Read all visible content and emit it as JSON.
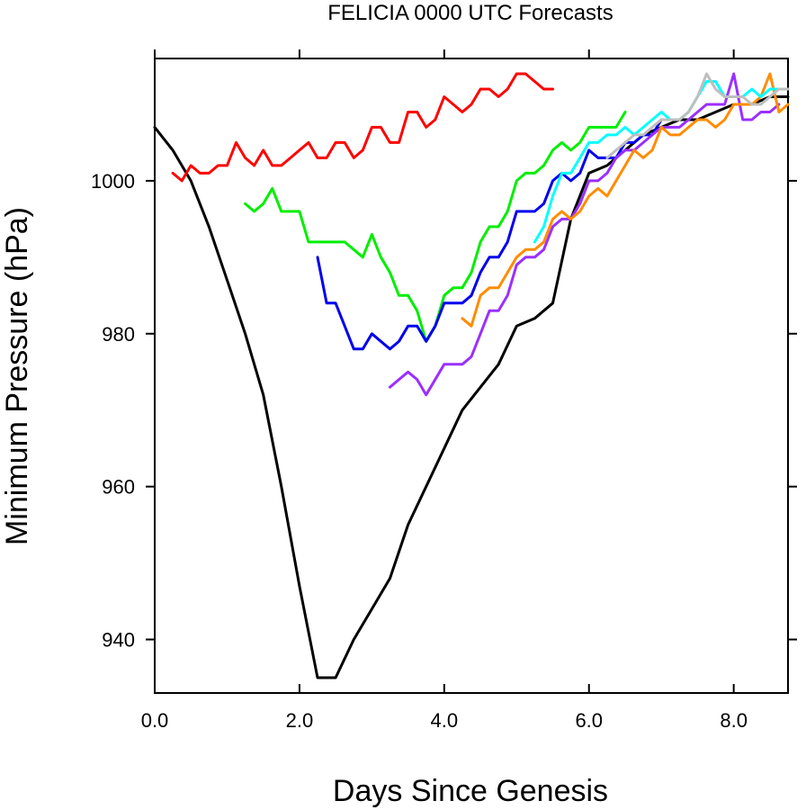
{
  "chart_data": {
    "type": "line",
    "title": "FELICIA 0000 UTC Forecasts",
    "xlabel": "Days Since Genesis",
    "ylabel": "Minimum Pressure (hPa)",
    "xlim": [
      0,
      8.75
    ],
    "ylim": [
      933,
      1016
    ],
    "xticks": [
      0,
      2,
      4,
      6,
      8
    ],
    "xtick_labels": [
      "0.0",
      "2.0",
      "4.0",
      "6.0",
      "8.0"
    ],
    "yticks": [
      940,
      960,
      980,
      1000
    ],
    "ytick_labels": [
      "940",
      "960",
      "980",
      "1000"
    ],
    "grid": false,
    "legend": "none",
    "series": [
      {
        "color": "#000000",
        "x": [
          0,
          0.25,
          0.5,
          0.75,
          1.0,
          1.25,
          1.5,
          1.75,
          2.0,
          2.25,
          2.5,
          2.75,
          3.0,
          3.25,
          3.5,
          3.75,
          4.0,
          4.25,
          4.5,
          4.75,
          5.0,
          5.25,
          5.5,
          5.75,
          6.0,
          6.25,
          6.5,
          6.75,
          7.0,
          7.25,
          7.5,
          7.75,
          8.0,
          8.25,
          8.5,
          8.75
        ],
        "y": [
          1007,
          1004,
          1000,
          994,
          987,
          980,
          972,
          960,
          947,
          935,
          935,
          940,
          944,
          948,
          955,
          960,
          965,
          970,
          973,
          976,
          981,
          982,
          984,
          995,
          1001,
          1002,
          1004,
          1006,
          1007,
          1008,
          1008,
          1009,
          1010,
          1010,
          1011,
          1011
        ]
      },
      {
        "color": "#ff0000",
        "x": [
          0.25,
          0.375,
          0.5,
          0.625,
          0.75,
          0.875,
          1.0,
          1.125,
          1.25,
          1.375,
          1.5,
          1.625,
          1.75,
          1.875,
          2.0,
          2.125,
          2.25,
          2.375,
          2.5,
          2.625,
          2.75,
          2.875,
          3.0,
          3.125,
          3.25,
          3.375,
          3.5,
          3.625,
          3.75,
          3.875,
          4.0,
          4.125,
          4.25,
          4.375,
          4.5,
          4.625,
          4.75,
          4.875,
          5.0,
          5.125,
          5.25,
          5.375,
          5.5
        ],
        "y": [
          1001,
          1000,
          1002,
          1001,
          1001,
          1002,
          1002,
          1005,
          1003,
          1002,
          1004,
          1002,
          1002,
          1003,
          1004,
          1005,
          1003,
          1003,
          1005,
          1005,
          1003,
          1004,
          1007,
          1007,
          1005,
          1005,
          1009,
          1009,
          1007,
          1008,
          1011,
          1010,
          1009,
          1010,
          1012,
          1012,
          1011,
          1012,
          1014,
          1014,
          1013,
          1012,
          1012
        ]
      },
      {
        "color": "#00ee00",
        "x": [
          1.25,
          1.375,
          1.5,
          1.625,
          1.75,
          1.875,
          2.0,
          2.125,
          2.25,
          2.375,
          2.5,
          2.625,
          2.75,
          2.875,
          3.0,
          3.125,
          3.25,
          3.375,
          3.5,
          3.625,
          3.75,
          3.875,
          4.0,
          4.125,
          4.25,
          4.375,
          4.5,
          4.625,
          4.75,
          4.875,
          5.0,
          5.125,
          5.25,
          5.375,
          5.5,
          5.625,
          5.75,
          5.875,
          6.0,
          6.125,
          6.25,
          6.375,
          6.5
        ],
        "y": [
          997,
          996,
          997,
          999,
          996,
          996,
          996,
          992,
          992,
          992,
          992,
          992,
          991,
          990,
          993,
          990,
          988,
          985,
          985,
          983,
          979,
          981,
          985,
          986,
          986,
          988,
          992,
          994,
          994,
          996,
          1000,
          1001,
          1001,
          1002,
          1004,
          1005,
          1004,
          1005,
          1007,
          1007,
          1007,
          1007,
          1009
        ]
      },
      {
        "color": "#0000ee",
        "x": [
          2.25,
          2.375,
          2.5,
          2.625,
          2.75,
          2.875,
          3.0,
          3.125,
          3.25,
          3.375,
          3.5,
          3.625,
          3.75,
          3.875,
          4.0,
          4.125,
          4.25,
          4.375,
          4.5,
          4.625,
          4.75,
          4.875,
          5.0,
          5.125,
          5.25,
          5.375,
          5.5,
          5.625,
          5.75,
          5.875,
          6.0,
          6.125,
          6.25,
          6.375,
          6.5,
          6.625,
          6.75,
          6.875,
          7.0
        ],
        "y": [
          990,
          984,
          984,
          981,
          978,
          978,
          980,
          979,
          978,
          979,
          981,
          981,
          979,
          981,
          984,
          984,
          984,
          985,
          988,
          990,
          990,
          992,
          996,
          996,
          996,
          997,
          1000,
          1001,
          1000,
          1001,
          1004,
          1003,
          1003,
          1003,
          1005,
          1005,
          1006,
          1006,
          1008
        ]
      },
      {
        "color": "#9a30ff",
        "x": [
          3.25,
          3.375,
          3.5,
          3.625,
          3.75,
          3.875,
          4.0,
          4.125,
          4.25,
          4.375,
          4.5,
          4.625,
          4.75,
          4.875,
          5.0,
          5.125,
          5.25,
          5.375,
          5.5,
          5.625,
          5.75,
          5.875,
          6.0,
          6.125,
          6.25,
          6.375,
          6.5,
          6.625,
          6.75,
          6.875,
          7.0,
          7.125,
          7.25,
          7.375,
          7.5,
          7.625,
          7.75,
          7.875,
          8.0,
          8.125,
          8.25,
          8.375,
          8.5,
          8.625
        ],
        "y": [
          973,
          974,
          975,
          974,
          972,
          974,
          976,
          976,
          976,
          977,
          980,
          983,
          983,
          985,
          989,
          990,
          990,
          991,
          994,
          995,
          995,
          997,
          1000,
          1000,
          1001,
          1003,
          1004,
          1004,
          1005,
          1006,
          1007,
          1007,
          1007,
          1008,
          1009,
          1010,
          1010,
          1010,
          1014,
          1008,
          1008,
          1009,
          1009,
          1010
        ]
      },
      {
        "color": "#ff8c00",
        "x": [
          4.25,
          4.375,
          4.5,
          4.625,
          4.75,
          4.875,
          5.0,
          5.125,
          5.25,
          5.375,
          5.5,
          5.625,
          5.75,
          5.875,
          6.0,
          6.125,
          6.25,
          6.375,
          6.5,
          6.625,
          6.75,
          6.875,
          7.0,
          7.125,
          7.25,
          7.375,
          7.5,
          7.625,
          7.75,
          7.875,
          8.0,
          8.125,
          8.25,
          8.375,
          8.5,
          8.625,
          8.75
        ],
        "y": [
          982,
          981,
          985,
          986,
          986,
          988,
          990,
          991,
          991,
          992,
          995,
          996,
          995,
          996,
          998,
          999,
          998,
          1000,
          1002,
          1004,
          1003,
          1004,
          1007,
          1006,
          1006,
          1007,
          1008,
          1008,
          1007,
          1008,
          1010,
          1010,
          1010,
          1011,
          1014,
          1009,
          1010
        ]
      },
      {
        "color": "#00ffff",
        "x": [
          5.25,
          5.375,
          5.5,
          5.625,
          5.75,
          5.875,
          6.0,
          6.125,
          6.25,
          6.375,
          6.5,
          6.625,
          6.75,
          6.875,
          7.0,
          7.125,
          7.25,
          7.375,
          7.5,
          7.625,
          7.75,
          7.875,
          8.0,
          8.125,
          8.25,
          8.375,
          8.5,
          8.625,
          8.75
        ],
        "y": [
          992,
          994,
          998,
          1001,
          1001,
          1003,
          1005,
          1005,
          1006,
          1006,
          1007,
          1006,
          1007,
          1008,
          1009,
          1008,
          1008,
          1009,
          1011,
          1013,
          1013,
          1011,
          1011,
          1011,
          1012,
          1011,
          1012,
          1012,
          1012
        ]
      },
      {
        "color": "#bebebe",
        "x": [
          6.25,
          6.375,
          6.5,
          6.625,
          6.75,
          6.875,
          7.0,
          7.125,
          7.25,
          7.375,
          7.5,
          7.625,
          7.75,
          7.875,
          8.0,
          8.125,
          8.25,
          8.375,
          8.5,
          8.625,
          8.75
        ],
        "y": [
          1003,
          1004,
          1005,
          1006,
          1006,
          1007,
          1008,
          1008,
          1008,
          1009,
          1011,
          1014,
          1012,
          1011,
          1011,
          1011,
          1010,
          1010,
          1011,
          1012,
          1012
        ]
      }
    ]
  }
}
